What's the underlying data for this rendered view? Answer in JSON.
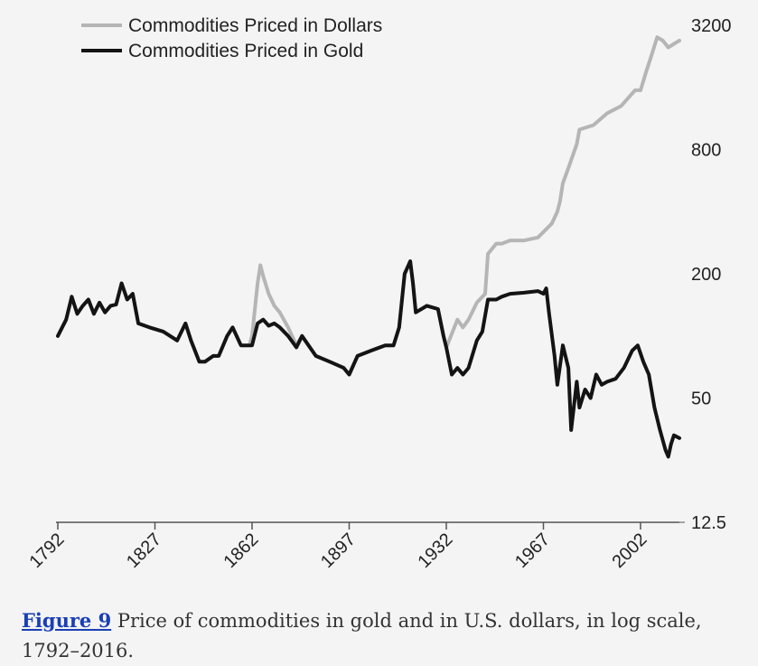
{
  "caption": {
    "link_text": "Figure 9",
    "text": " Price of commodities in gold and in U.S. dollars, in log scale, 1792–2016."
  },
  "colors": {
    "dollars": "#b5b5b5",
    "gold": "#141414",
    "axis": "#555555"
  },
  "chart_data": {
    "type": "line",
    "title": "Price of commodities in gold and in U.S. dollars, in log scale, 1792–2016.",
    "xlabel": "",
    "ylabel": "",
    "yscale": "log",
    "xlim": [
      1792,
      2016
    ],
    "ylim": [
      12.5,
      3200
    ],
    "x_ticks": [
      "1792",
      "1827",
      "1862",
      "1897",
      "1932",
      "1967",
      "2002"
    ],
    "y_ticks": [
      "12.5",
      "50",
      "200",
      "800",
      "3200"
    ],
    "legend_position": "top-left",
    "series": [
      {
        "name": "Commodities Priced in Dollars",
        "key": "dollars",
        "points": [
          [
            1792,
            100
          ],
          [
            1795,
            120
          ],
          [
            1797,
            155
          ],
          [
            1799,
            128
          ],
          [
            1801,
            140
          ],
          [
            1803,
            150
          ],
          [
            1805,
            128
          ],
          [
            1807,
            145
          ],
          [
            1809,
            130
          ],
          [
            1811,
            140
          ],
          [
            1813,
            142
          ],
          [
            1815,
            180
          ],
          [
            1817,
            150
          ],
          [
            1819,
            160
          ],
          [
            1821,
            115
          ],
          [
            1825,
            110
          ],
          [
            1830,
            105
          ],
          [
            1835,
            95
          ],
          [
            1838,
            115
          ],
          [
            1840,
            95
          ],
          [
            1843,
            75
          ],
          [
            1845,
            75
          ],
          [
            1848,
            80
          ],
          [
            1850,
            80
          ],
          [
            1853,
            100
          ],
          [
            1855,
            110
          ],
          [
            1858,
            90
          ],
          [
            1861,
            90
          ],
          [
            1862,
            100
          ],
          [
            1864,
            180
          ],
          [
            1865,
            220
          ],
          [
            1866,
            195
          ],
          [
            1868,
            160
          ],
          [
            1870,
            140
          ],
          [
            1872,
            130
          ],
          [
            1875,
            110
          ],
          [
            1878,
            90
          ],
          [
            1880,
            100
          ],
          [
            1885,
            80
          ],
          [
            1890,
            75
          ],
          [
            1895,
            70
          ],
          [
            1897,
            65
          ],
          [
            1900,
            80
          ],
          [
            1905,
            85
          ],
          [
            1910,
            90
          ],
          [
            1913,
            90
          ],
          [
            1915,
            110
          ],
          [
            1917,
            200
          ],
          [
            1919,
            230
          ],
          [
            1920,
            180
          ],
          [
            1921,
            130
          ],
          [
            1925,
            140
          ],
          [
            1929,
            135
          ],
          [
            1931,
            100
          ],
          [
            1932,
            88
          ],
          [
            1933,
            95
          ],
          [
            1936,
            120
          ],
          [
            1938,
            110
          ],
          [
            1940,
            120
          ],
          [
            1943,
            145
          ],
          [
            1946,
            160
          ],
          [
            1947,
            250
          ],
          [
            1950,
            280
          ],
          [
            1952,
            280
          ],
          [
            1955,
            290
          ],
          [
            1960,
            290
          ],
          [
            1965,
            300
          ],
          [
            1970,
            350
          ],
          [
            1972,
            400
          ],
          [
            1973,
            450
          ],
          [
            1974,
            550
          ],
          [
            1976,
            650
          ],
          [
            1979,
            850
          ],
          [
            1980,
            1000
          ],
          [
            1985,
            1050
          ],
          [
            1990,
            1200
          ],
          [
            1995,
            1300
          ],
          [
            2000,
            1550
          ],
          [
            2002,
            1550
          ],
          [
            2004,
            1900
          ],
          [
            2006,
            2300
          ],
          [
            2008,
            2800
          ],
          [
            2010,
            2700
          ],
          [
            2012,
            2500
          ],
          [
            2014,
            2600
          ],
          [
            2016,
            2700
          ]
        ]
      },
      {
        "name": "Commodities Priced in Gold",
        "key": "gold",
        "points": [
          [
            1792,
            100
          ],
          [
            1795,
            120
          ],
          [
            1797,
            155
          ],
          [
            1799,
            128
          ],
          [
            1801,
            140
          ],
          [
            1803,
            150
          ],
          [
            1805,
            128
          ],
          [
            1807,
            145
          ],
          [
            1809,
            130
          ],
          [
            1811,
            140
          ],
          [
            1813,
            142
          ],
          [
            1815,
            180
          ],
          [
            1817,
            150
          ],
          [
            1819,
            160
          ],
          [
            1821,
            115
          ],
          [
            1825,
            110
          ],
          [
            1830,
            105
          ],
          [
            1835,
            95
          ],
          [
            1838,
            115
          ],
          [
            1840,
            95
          ],
          [
            1843,
            75
          ],
          [
            1845,
            75
          ],
          [
            1848,
            80
          ],
          [
            1850,
            80
          ],
          [
            1853,
            100
          ],
          [
            1855,
            110
          ],
          [
            1858,
            90
          ],
          [
            1861,
            90
          ],
          [
            1862,
            90
          ],
          [
            1864,
            115
          ],
          [
            1866,
            120
          ],
          [
            1868,
            112
          ],
          [
            1870,
            115
          ],
          [
            1872,
            110
          ],
          [
            1875,
            100
          ],
          [
            1878,
            88
          ],
          [
            1880,
            100
          ],
          [
            1885,
            80
          ],
          [
            1890,
            75
          ],
          [
            1895,
            70
          ],
          [
            1897,
            65
          ],
          [
            1900,
            80
          ],
          [
            1905,
            85
          ],
          [
            1910,
            90
          ],
          [
            1913,
            90
          ],
          [
            1915,
            110
          ],
          [
            1917,
            200
          ],
          [
            1919,
            230
          ],
          [
            1920,
            180
          ],
          [
            1921,
            130
          ],
          [
            1925,
            140
          ],
          [
            1929,
            135
          ],
          [
            1931,
            100
          ],
          [
            1932,
            88
          ],
          [
            1934,
            65
          ],
          [
            1936,
            70
          ],
          [
            1938,
            65
          ],
          [
            1940,
            70
          ],
          [
            1943,
            95
          ],
          [
            1945,
            105
          ],
          [
            1947,
            150
          ],
          [
            1950,
            150
          ],
          [
            1952,
            155
          ],
          [
            1955,
            160
          ],
          [
            1960,
            162
          ],
          [
            1965,
            165
          ],
          [
            1967,
            160
          ],
          [
            1968,
            170
          ],
          [
            1969,
            130
          ],
          [
            1971,
            80
          ],
          [
            1972,
            58
          ],
          [
            1974,
            90
          ],
          [
            1976,
            70
          ],
          [
            1977,
            35
          ],
          [
            1979,
            60
          ],
          [
            1980,
            45
          ],
          [
            1982,
            55
          ],
          [
            1984,
            50
          ],
          [
            1986,
            65
          ],
          [
            1988,
            58
          ],
          [
            1990,
            60
          ],
          [
            1993,
            62
          ],
          [
            1996,
            70
          ],
          [
            1999,
            85
          ],
          [
            2001,
            90
          ],
          [
            2003,
            75
          ],
          [
            2005,
            65
          ],
          [
            2007,
            45
          ],
          [
            2009,
            35
          ],
          [
            2011,
            28
          ],
          [
            2012,
            26
          ],
          [
            2013,
            30
          ],
          [
            2014,
            33
          ],
          [
            2016,
            32
          ]
        ]
      }
    ]
  }
}
